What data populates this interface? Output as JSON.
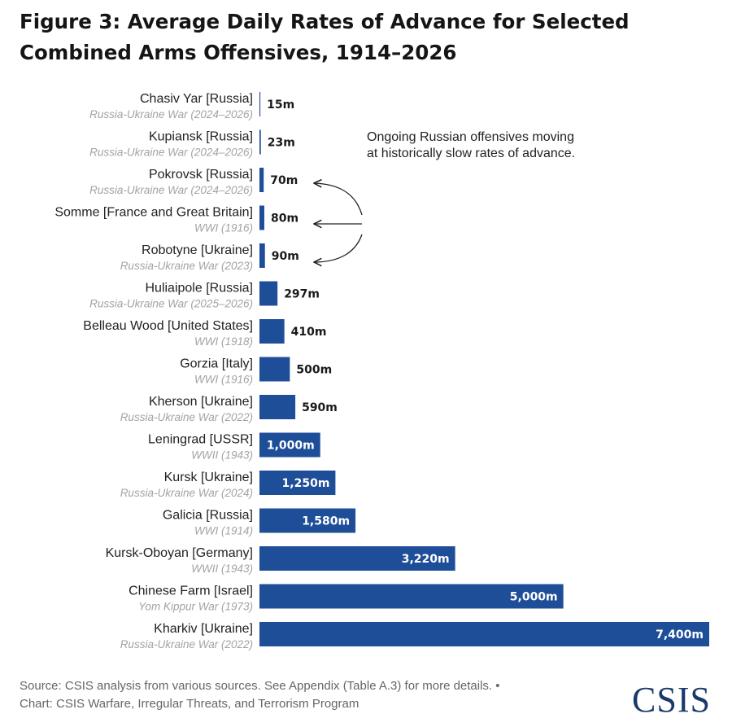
{
  "title": "Figure 3: Average Daily Rates of Advance for Selected Combined Arms Offensives, 1914–2026",
  "annotation": {
    "line1": "Ongoing Russian offensives moving",
    "line2": "at historically slow rates of advance."
  },
  "source": {
    "line1": "Source: CSIS analysis from various sources. See Appendix (Table A.3) for more details. •",
    "line2": "Chart: CSIS Warfare, Irregular Threats, and Terrorism Program"
  },
  "logo": "CSIS",
  "colors": {
    "bar": "#1f4e99",
    "label_dark": "#1a1a1a",
    "label_light": "#ffffff"
  },
  "chart_data": {
    "type": "bar",
    "orientation": "horizontal",
    "unit": "m",
    "categories": [
      "Chasiv Yar [Russia]",
      "Kupiansk [Russia]",
      "Pokrovsk [Russia]",
      "Somme [France and Great Britain]",
      "Robotyne [Ukraine]",
      "Huliaipole [Russia]",
      "Belleau Wood [United States]",
      "Gorzia [Italy]",
      "Kherson [Ukraine]",
      "Leningrad [USSR]",
      "Kursk [Ukraine]",
      "Galicia [Russia]",
      "Kursk-Oboyan [Germany]",
      "Chinese Farm [Israel]",
      "Kharkiv [Ukraine]"
    ],
    "subtitles": [
      "Russia-Ukraine War (2024–2026)",
      "Russia-Ukraine War (2024–2026)",
      "Russia-Ukraine War (2024–2026)",
      "WWI (1916)",
      "Russia-Ukraine War (2023)",
      "Russia-Ukraine War (2025–2026)",
      "WWI (1918)",
      "WWI (1916)",
      "Russia-Ukraine War (2022)",
      "WWII (1943)",
      "Russia-Ukraine War (2024)",
      "WWI (1914)",
      "WWII (1943)",
      "Yom Kippur War (1973)",
      "Russia-Ukraine War (2022)"
    ],
    "values": [
      15,
      23,
      70,
      80,
      90,
      297,
      410,
      500,
      590,
      1000,
      1250,
      1580,
      3220,
      5000,
      7400
    ],
    "value_labels": [
      "15m",
      "23m",
      "70m",
      "80m",
      "90m",
      "297m",
      "410m",
      "500m",
      "590m",
      "1,000m",
      "1,250m",
      "1,580m",
      "3,220m",
      "5,000m",
      "7,400m"
    ],
    "label_inside": [
      false,
      false,
      false,
      false,
      false,
      false,
      false,
      false,
      false,
      true,
      true,
      true,
      true,
      true,
      true
    ],
    "annotated_indices": [
      0,
      1,
      2
    ],
    "xlim": [
      0,
      7400
    ],
    "grid": false,
    "legend": "none"
  }
}
